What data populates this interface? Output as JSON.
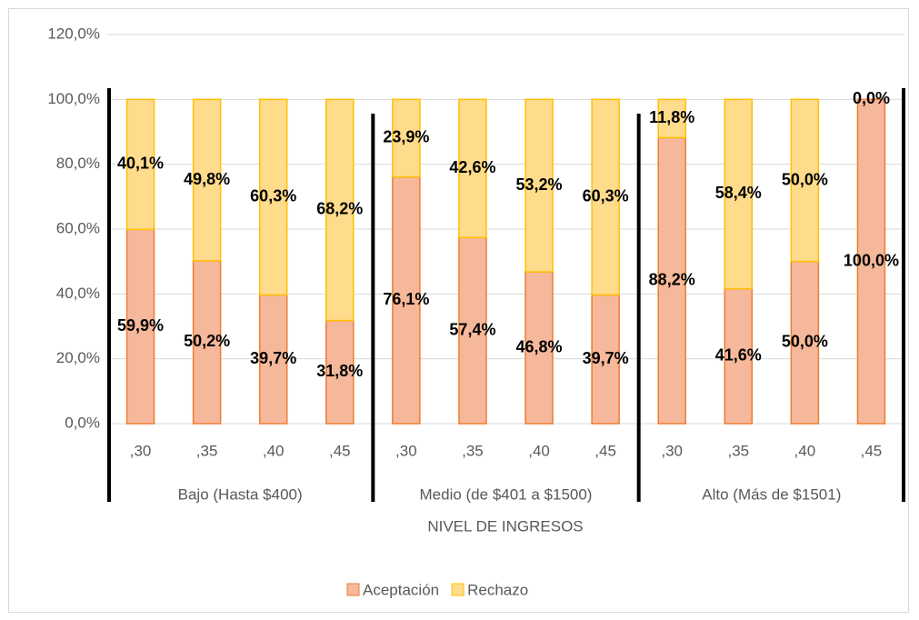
{
  "chart_data": {
    "type": "stacked_bar",
    "categories": [
      ",30",
      ",35",
      ",40",
      ",45",
      ",30",
      ",35",
      ",40",
      ",45",
      ",30",
      ",35",
      ",40",
      ",45"
    ],
    "groups": [
      "Bajo (Hasta $400)",
      "Medio (de $401 a $1500)",
      "Alto (Más de $1501)"
    ],
    "x_label": "NIVEL DE INGRESOS",
    "series": [
      {
        "name": "Aceptación",
        "color": "#f6b89a",
        "edge": "#ed7d31",
        "values": [
          59.9,
          50.2,
          39.7,
          31.8,
          76.1,
          57.4,
          46.8,
          39.7,
          88.2,
          41.6,
          50.0,
          100.0
        ],
        "value_labels": [
          "59,9%",
          "50,2%",
          "39,7%",
          "31,8%",
          "76,1%",
          "57,4%",
          "46,8%",
          "39,7%",
          "88,2%",
          "41,6%",
          "50,0%",
          "100,0%"
        ]
      },
      {
        "name": "Rechazo",
        "color": "#ffdb8c",
        "edge": "#ffc000",
        "values": [
          40.1,
          49.8,
          60.3,
          68.2,
          23.9,
          42.6,
          53.2,
          60.3,
          11.8,
          58.4,
          50.0,
          0.0
        ],
        "value_labels": [
          "40,1%",
          "49,8%",
          "60,3%",
          "68,2%",
          "23,9%",
          "42,6%",
          "53,2%",
          "60,3%",
          "11,8%",
          "58,4%",
          "50,0%",
          "0,0%"
        ]
      }
    ],
    "ylim": [
      0,
      120
    ],
    "yticks": [
      {
        "value": 0,
        "label": "0,0%"
      },
      {
        "value": 20,
        "label": "20,0%"
      },
      {
        "value": 40,
        "label": "40,0%"
      },
      {
        "value": 60,
        "label": "60,0%"
      },
      {
        "value": 80,
        "label": "80,0%"
      },
      {
        "value": 100,
        "label": "100,0%"
      },
      {
        "value": 120,
        "label": "120,0%"
      }
    ],
    "grid": true,
    "legend": "bottom"
  }
}
